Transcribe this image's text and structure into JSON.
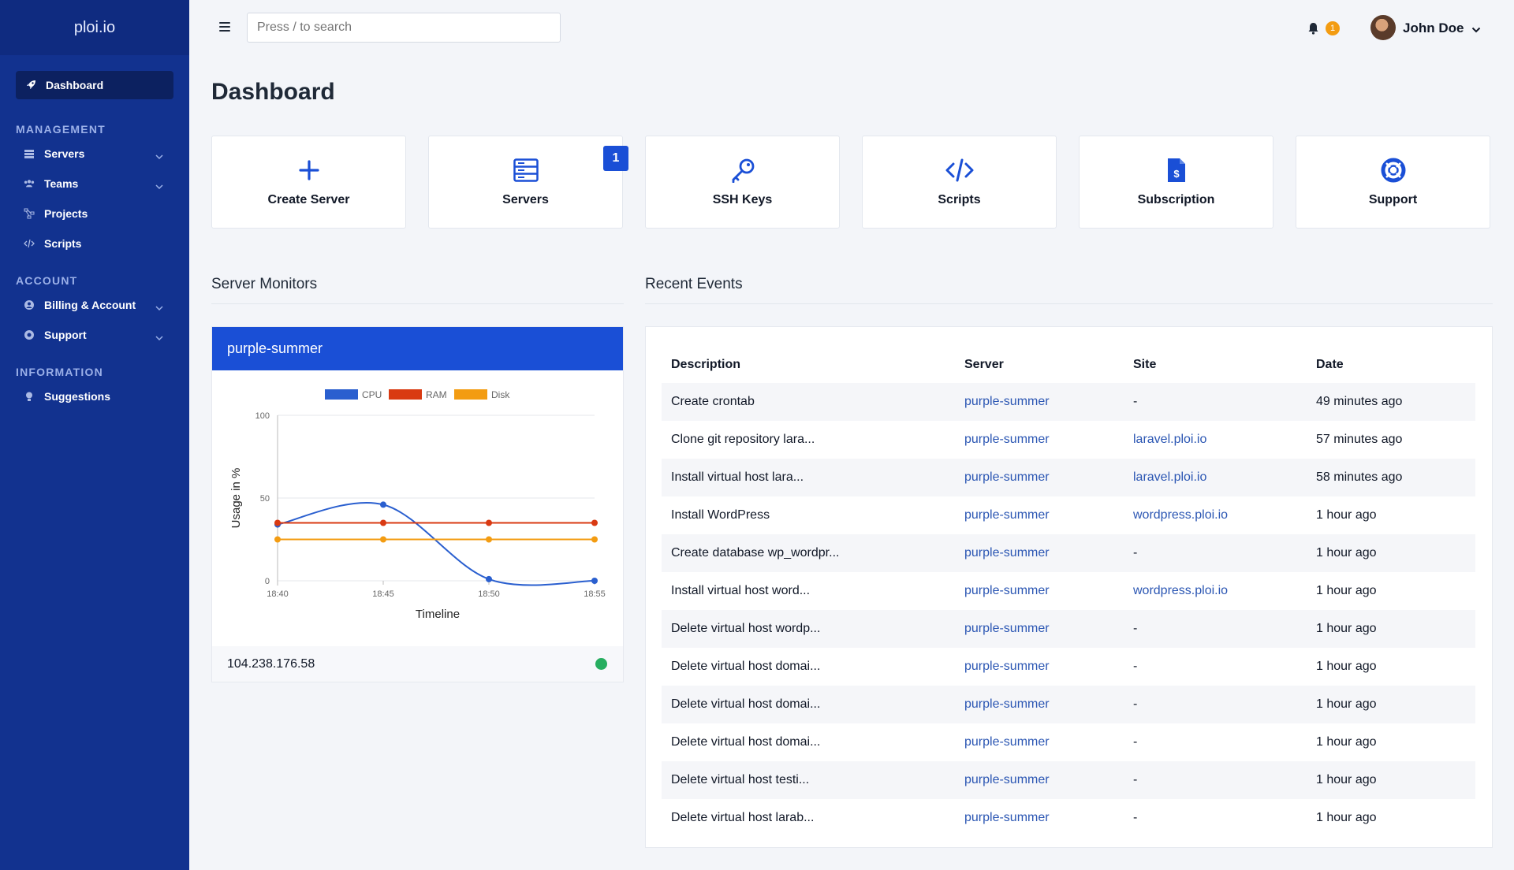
{
  "sidebar": {
    "brand": "ploi.io",
    "active": "Dashboard",
    "sections": [
      {
        "title": "MANAGEMENT",
        "items": [
          "Servers",
          "Teams",
          "Projects",
          "Scripts"
        ]
      },
      {
        "title": "ACCOUNT",
        "items": [
          "Billing & Account",
          "Support"
        ]
      },
      {
        "title": "INFORMATION",
        "items": [
          "Suggestions"
        ]
      }
    ]
  },
  "topbar": {
    "search_placeholder": "Press / to search",
    "notification_count": "1",
    "user_name": "John Doe"
  },
  "page_title": "Dashboard",
  "cards": [
    {
      "label": "Create Server",
      "icon": "plus-icon"
    },
    {
      "label": "Servers",
      "icon": "server-icon",
      "badge": "1"
    },
    {
      "label": "SSH Keys",
      "icon": "key-icon"
    },
    {
      "label": "Scripts",
      "icon": "code-icon"
    },
    {
      "label": "Subscription",
      "icon": "invoice-icon"
    },
    {
      "label": "Support",
      "icon": "lifebuoy-icon"
    }
  ],
  "server_monitors": {
    "heading": "Server Monitors",
    "server_name": "purple-summer",
    "ip": "104.238.176.58",
    "status_color": "#27ae60"
  },
  "chart_data": {
    "type": "line",
    "x": [
      "18:40",
      "18:45",
      "18:50",
      "18:55"
    ],
    "series": [
      {
        "name": "CPU",
        "color": "#2a5fcf",
        "values": [
          34,
          46,
          1,
          0
        ]
      },
      {
        "name": "RAM",
        "color": "#d93a12",
        "values": [
          35,
          35,
          35,
          35
        ]
      },
      {
        "name": "Disk",
        "color": "#f39c12",
        "values": [
          25,
          25,
          25,
          25
        ]
      }
    ],
    "xlabel": "Timeline",
    "ylabel": "Usage in %",
    "ylim": [
      0,
      100
    ],
    "yticks": [
      0,
      50,
      100
    ],
    "legend": "top"
  },
  "recent_events": {
    "heading": "Recent Events",
    "columns": [
      "Description",
      "Server",
      "Site",
      "Date"
    ],
    "rows": [
      [
        "Create crontab",
        "purple-summer",
        "-",
        "49 minutes ago"
      ],
      [
        "Clone git repository lara...",
        "purple-summer",
        "laravel.ploi.io",
        "57 minutes ago"
      ],
      [
        "Install virtual host lara...",
        "purple-summer",
        "laravel.ploi.io",
        "58 minutes ago"
      ],
      [
        "Install WordPress",
        "purple-summer",
        "wordpress.ploi.io",
        "1 hour ago"
      ],
      [
        "Create database wp_wordpr...",
        "purple-summer",
        "-",
        "1 hour ago"
      ],
      [
        "Install virtual host word...",
        "purple-summer",
        "wordpress.ploi.io",
        "1 hour ago"
      ],
      [
        "Delete virtual host wordp...",
        "purple-summer",
        "-",
        "1 hour ago"
      ],
      [
        "Delete virtual host domai...",
        "purple-summer",
        "-",
        "1 hour ago"
      ],
      [
        "Delete virtual host domai...",
        "purple-summer",
        "-",
        "1 hour ago"
      ],
      [
        "Delete virtual host domai...",
        "purple-summer",
        "-",
        "1 hour ago"
      ],
      [
        "Delete virtual host testi...",
        "purple-summer",
        "-",
        "1 hour ago"
      ],
      [
        "Delete virtual host larab...",
        "purple-summer",
        "-",
        "1 hour ago"
      ]
    ]
  }
}
